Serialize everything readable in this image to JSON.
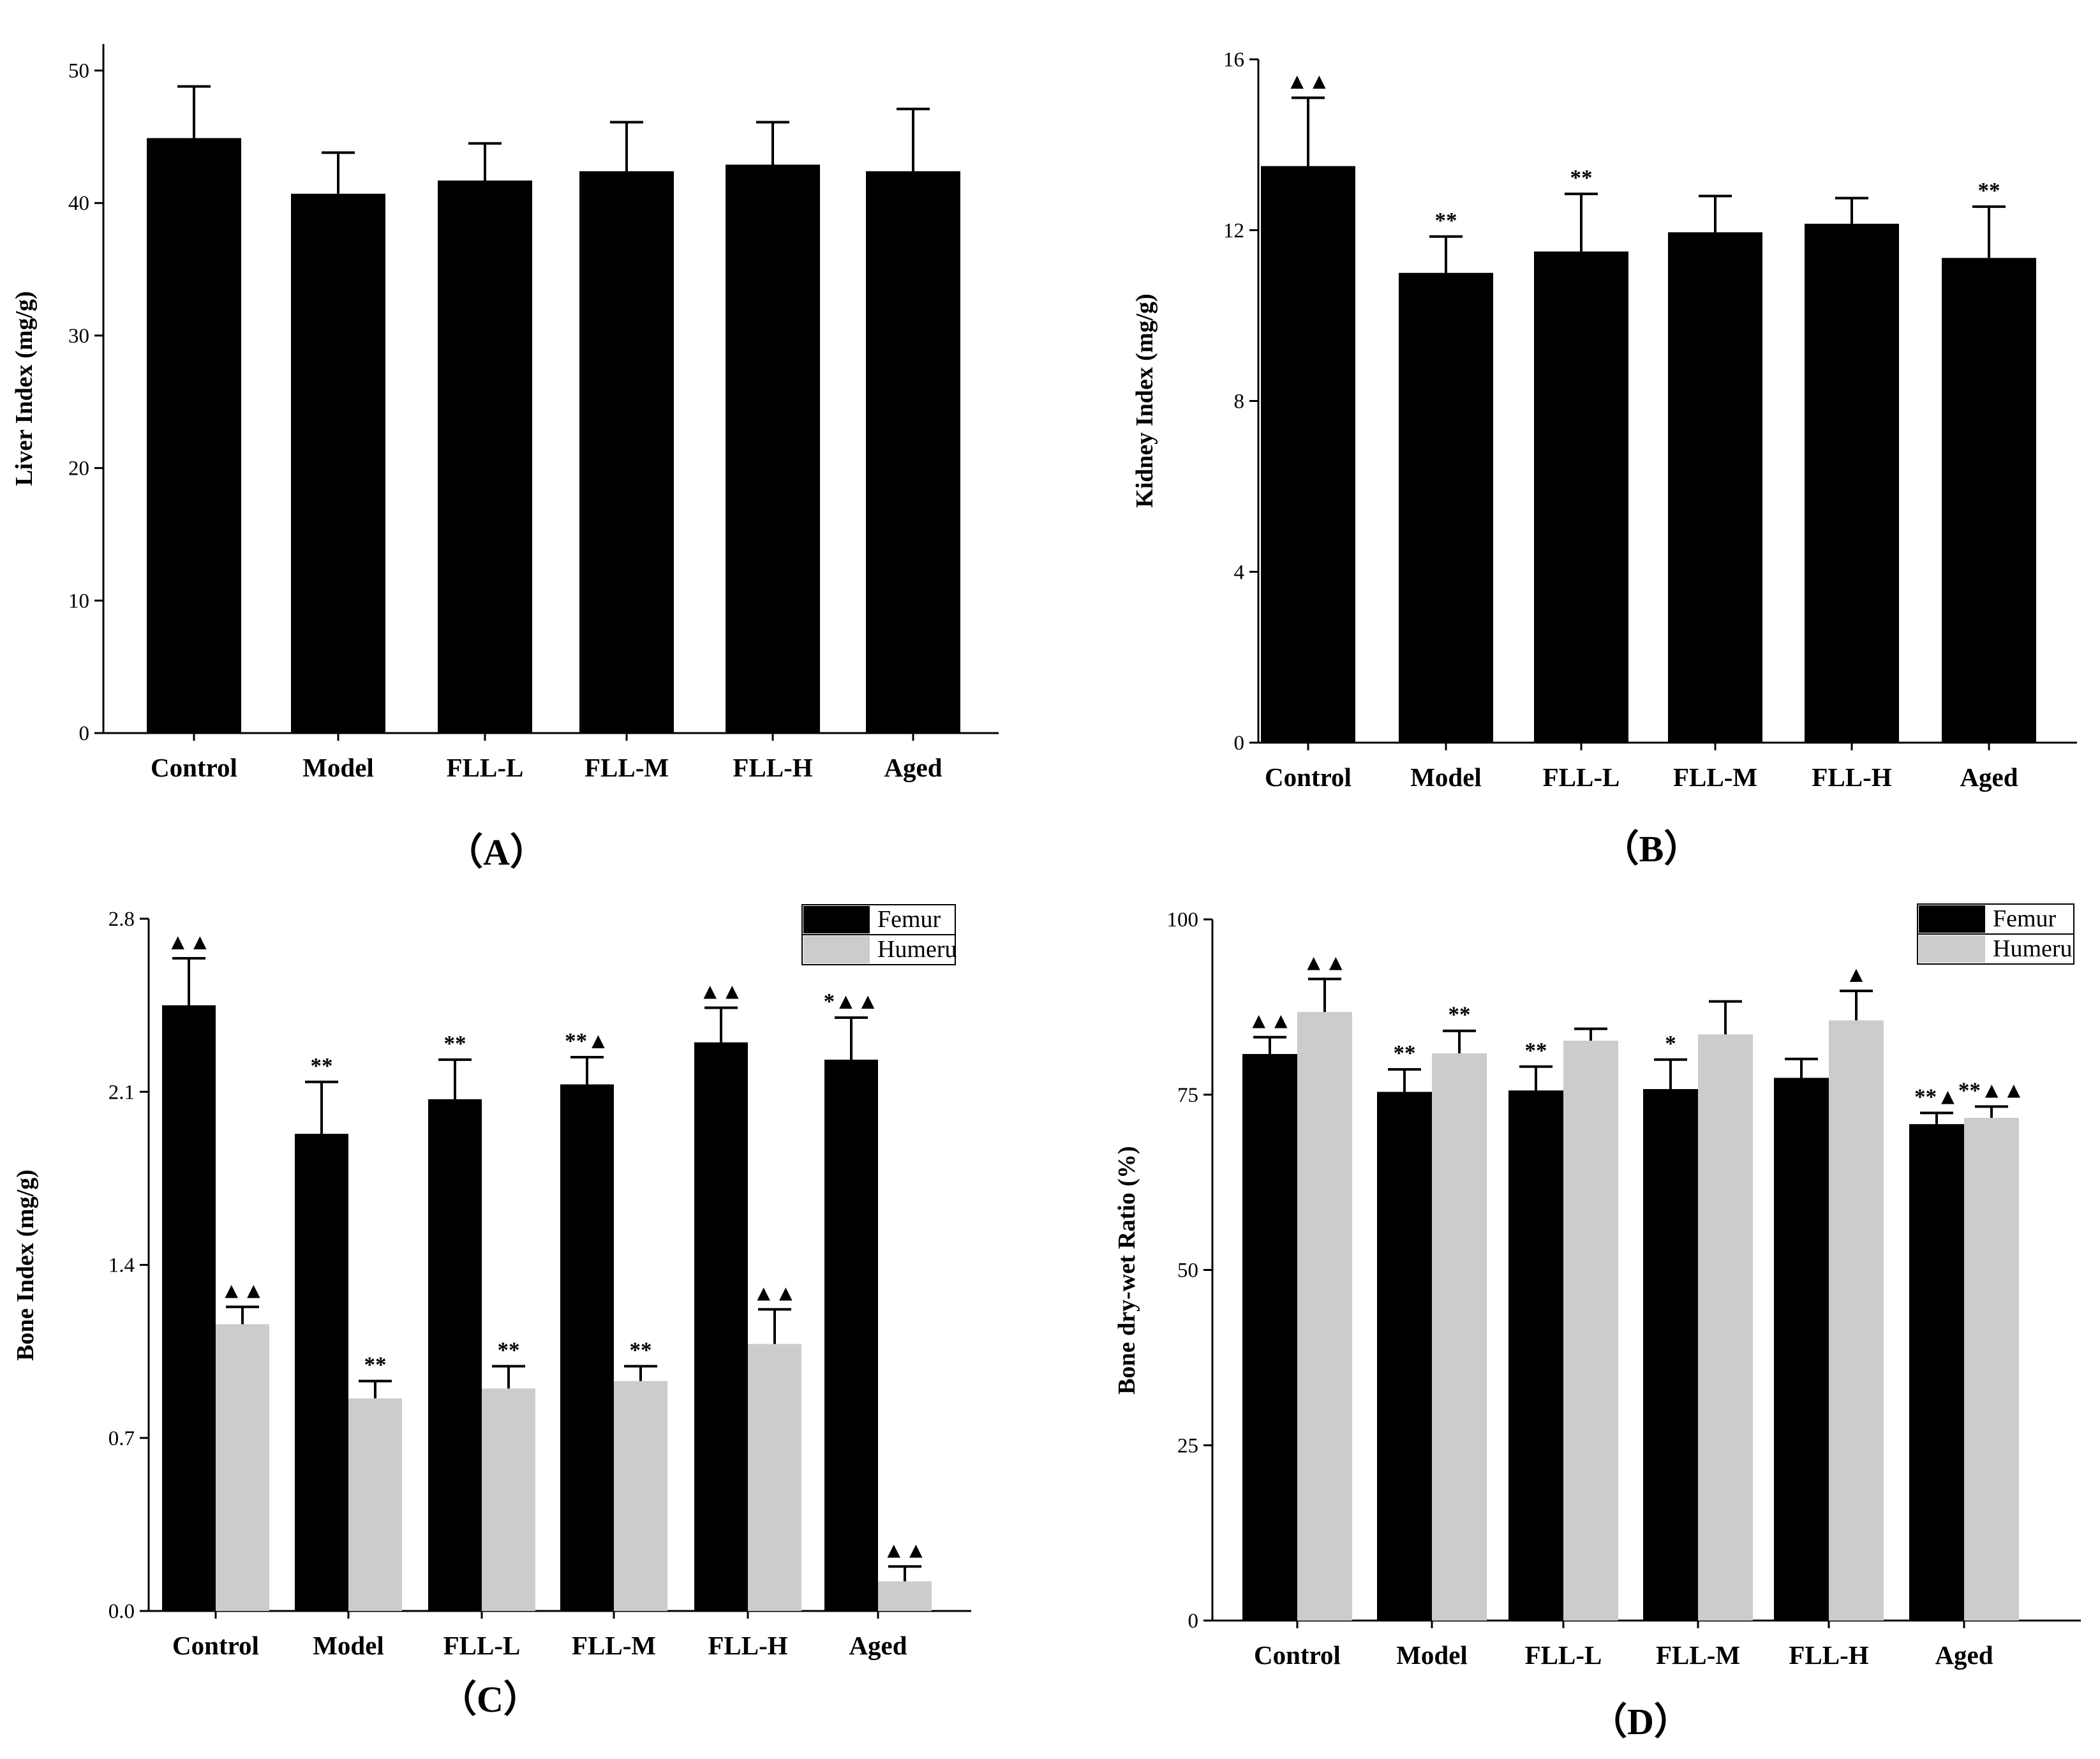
{
  "chart_data": [
    {
      "type": "bar",
      "panel_label": "（A）",
      "ylabel": "Liver Index (mg/g)",
      "ylim": [
        0,
        52
      ],
      "yticks": [
        "0",
        "10",
        "20",
        "30",
        "40",
        "50"
      ],
      "ytick_values": [
        0,
        10,
        20,
        30,
        40,
        50
      ],
      "categories": [
        "Control",
        "Model",
        "FLL-L",
        "FLL-M",
        "FLL-H",
        "Aged"
      ],
      "legend": null,
      "series": [
        {
          "name": "",
          "color": "#000000",
          "values": [
            44.9,
            40.7,
            41.7,
            42.4,
            42.9,
            42.4
          ],
          "errors": [
            3.9,
            3.1,
            2.8,
            3.7,
            3.2,
            4.7
          ],
          "annotations": [
            "",
            "",
            "",
            "",
            "",
            ""
          ]
        }
      ]
    },
    {
      "type": "bar",
      "panel_label": "（B）",
      "ylabel": "Kidney Index (mg/g)",
      "ylim": [
        0,
        16
      ],
      "yticks": [
        "0",
        "4",
        "8",
        "12",
        "16"
      ],
      "ytick_values": [
        0,
        4,
        8,
        12,
        16
      ],
      "categories": [
        "Control",
        "Model",
        "FLL-L",
        "FLL-M",
        "FLL-H",
        "Aged"
      ],
      "legend": null,
      "series": [
        {
          "name": "",
          "color": "#000000",
          "values": [
            13.5,
            11.0,
            11.5,
            11.95,
            12.15,
            11.35
          ],
          "errors": [
            1.6,
            0.85,
            1.35,
            0.85,
            0.6,
            1.2
          ],
          "annotations": [
            "▲▲",
            "**",
            "**",
            "",
            "",
            "**"
          ]
        }
      ]
    },
    {
      "type": "bar",
      "panel_label": "（C）",
      "ylabel": "Bone Index (mg/g)",
      "ylim": [
        0,
        2.8
      ],
      "yticks": [
        "0.0",
        "0.7",
        "1.4",
        "2.1",
        "2.8"
      ],
      "ytick_values": [
        0,
        0.7,
        1.4,
        2.1,
        2.8
      ],
      "categories": [
        "Control",
        "Model",
        "FLL-L",
        "FLL-M",
        "FLL-H",
        "Aged"
      ],
      "legend": [
        "Femur",
        "Humeru"
      ],
      "series": [
        {
          "name": "Femur",
          "color": "#000000",
          "values": [
            2.45,
            1.93,
            2.07,
            2.13,
            2.3,
            2.23
          ],
          "errors": [
            0.19,
            0.21,
            0.16,
            0.11,
            0.14,
            0.17
          ],
          "annotations": [
            "▲▲",
            "**",
            "**",
            "**▲",
            "▲▲",
            "*▲▲"
          ]
        },
        {
          "name": "Humeru",
          "color": "#cccccc",
          "values": [
            1.16,
            0.86,
            0.9,
            0.93,
            1.08,
            0.12
          ],
          "errors": [
            0.07,
            0.07,
            0.09,
            0.06,
            0.14,
            0.06
          ],
          "annotations": [
            "▲▲",
            "**",
            "**",
            "**",
            "▲▲",
            "▲▲"
          ]
        }
      ]
    },
    {
      "type": "bar",
      "panel_label": "（D）",
      "ylabel": "Bone dry-wet Ratio (%)",
      "ylim": [
        0,
        100
      ],
      "yticks": [
        "0",
        "25",
        "50",
        "75",
        "100"
      ],
      "ytick_values": [
        0,
        25,
        50,
        75,
        100
      ],
      "categories": [
        "Control",
        "Model",
        "FLL-L",
        "FLL-M",
        "FLL-H",
        "Aged"
      ],
      "legend": [
        "Femur",
        "Humeru"
      ],
      "series": [
        {
          "name": "Femur",
          "color": "#000000",
          "values": [
            80.8,
            75.4,
            75.6,
            75.8,
            77.4,
            70.8
          ],
          "errors": [
            2.4,
            3.2,
            3.4,
            4.2,
            2.7,
            1.6
          ],
          "annotations": [
            "▲▲",
            "**",
            "**",
            "*",
            "",
            "**▲"
          ]
        },
        {
          "name": "Humeru",
          "color": "#cccccc",
          "values": [
            86.8,
            80.9,
            82.7,
            83.6,
            85.6,
            71.7
          ],
          "errors": [
            4.7,
            3.2,
            1.7,
            4.7,
            4.2,
            1.6
          ],
          "annotations": [
            "▲▲",
            "**",
            "",
            "",
            "▲",
            "**▲▲"
          ]
        }
      ]
    }
  ]
}
